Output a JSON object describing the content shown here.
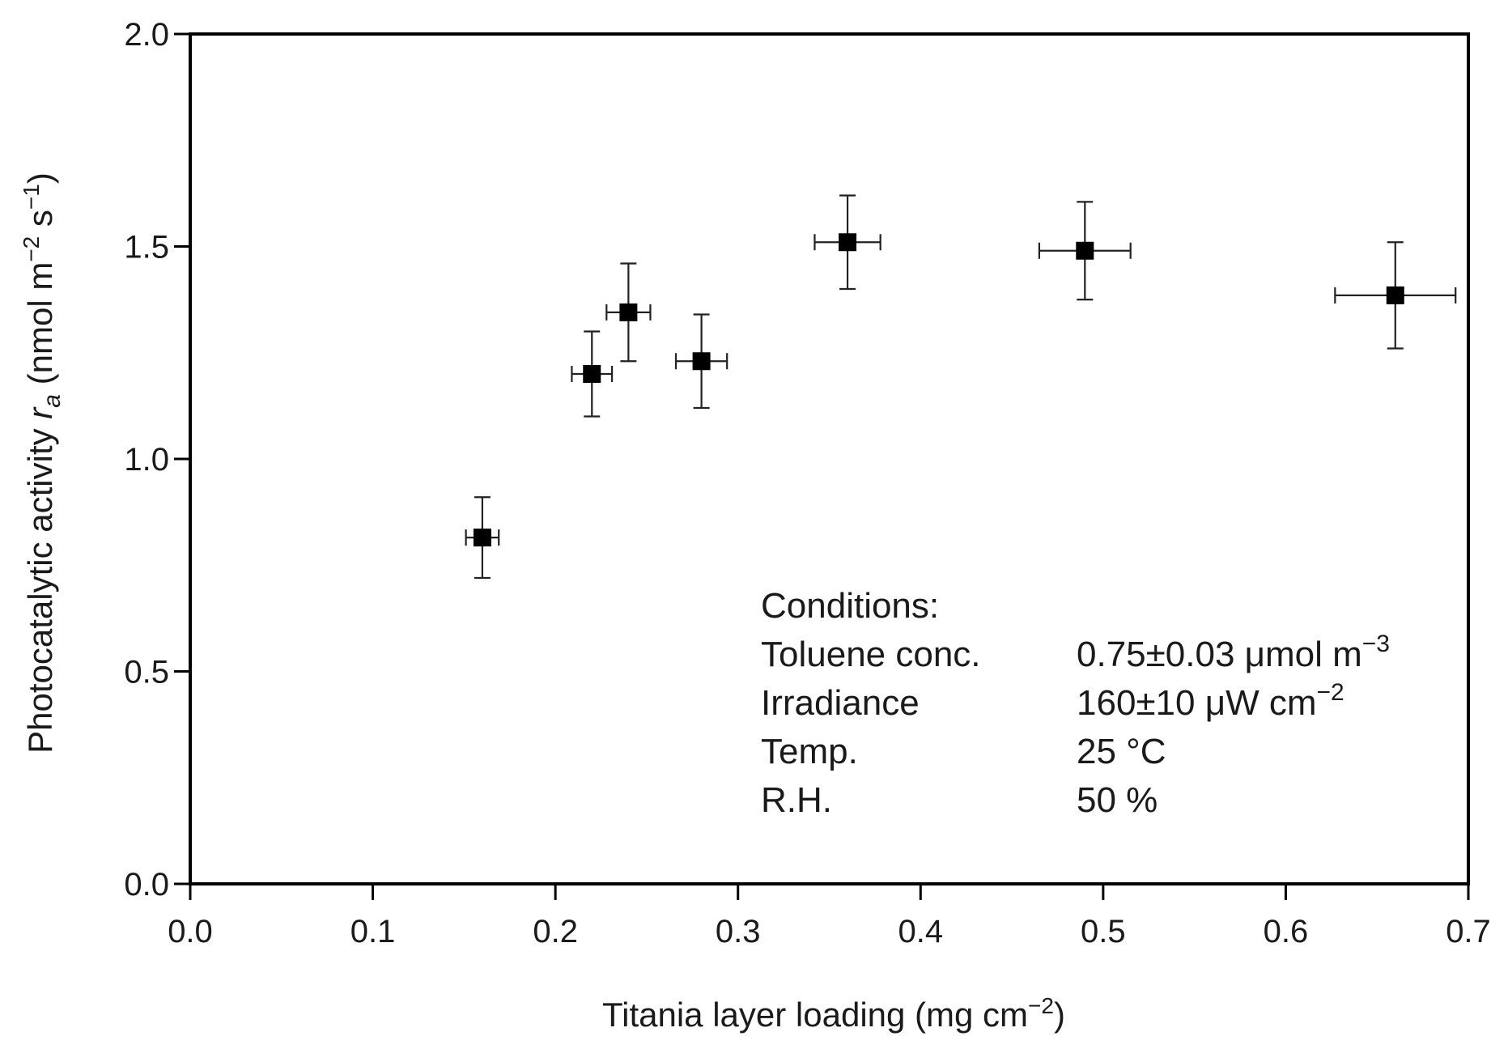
{
  "chart_data": {
    "type": "scatter",
    "title": "",
    "xlabel": {
      "main": "Titania layer loading  (mg cm",
      "sup": "−2",
      "tail": ")"
    },
    "ylabel": {
      "main": "Photocatalytic activity ",
      "var": "r",
      "sub": "a",
      "unit_pre": "  (nmol m",
      "sup1": "−2",
      "mid": " s",
      "sup2": "−1",
      "tail": ")"
    },
    "xlim": [
      0.0,
      0.7
    ],
    "ylim": [
      0.0,
      2.0
    ],
    "xticks": [
      0.0,
      0.1,
      0.2,
      0.3,
      0.4,
      0.5,
      0.6,
      0.7
    ],
    "xtick_labels": [
      "0.0",
      "0.1",
      "0.2",
      "0.3",
      "0.4",
      "0.5",
      "0.6",
      "0.7"
    ],
    "yticks": [
      0.0,
      0.5,
      1.0,
      1.5,
      2.0
    ],
    "ytick_labels": [
      "0.0",
      "0.5",
      "1.0",
      "1.5",
      "2.0"
    ],
    "grid": false,
    "series": [
      {
        "name": "Photocatalytic activity",
        "marker": "square",
        "color": "#000000",
        "points": [
          {
            "x": 0.16,
            "y": 0.815,
            "xerr": 0.009,
            "yerr": 0.095
          },
          {
            "x": 0.22,
            "y": 1.2,
            "xerr": 0.011,
            "yerr": 0.1
          },
          {
            "x": 0.24,
            "y": 1.345,
            "xerr": 0.012,
            "yerr": 0.115
          },
          {
            "x": 0.28,
            "y": 1.23,
            "xerr": 0.014,
            "yerr": 0.11
          },
          {
            "x": 0.36,
            "y": 1.51,
            "xerr": 0.018,
            "yerr": 0.11
          },
          {
            "x": 0.49,
            "y": 1.49,
            "xerr": 0.025,
            "yerr": 0.115
          },
          {
            "x": 0.66,
            "y": 1.385,
            "xerr": 0.033,
            "yerr": 0.125
          }
        ]
      }
    ],
    "annotation": {
      "heading": "Conditions:",
      "rows": [
        {
          "label": "Toluene conc.",
          "value": "0.75±0.03 μmol m",
          "sup": "−3"
        },
        {
          "label": "Irradiance",
          "value": "160±10 μW cm",
          "sup": "−2"
        },
        {
          "label": "Temp.",
          "value": "25 °C",
          "sup": ""
        },
        {
          "label": "R.H.",
          "value": "50 %",
          "sup": ""
        }
      ]
    }
  }
}
